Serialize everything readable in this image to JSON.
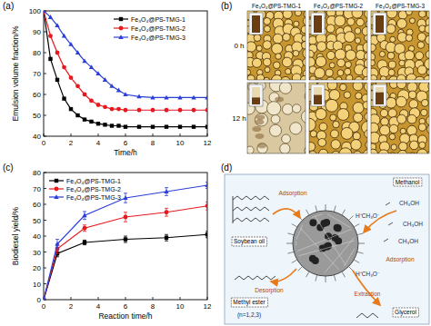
{
  "chart_data": [
    {
      "type": "line",
      "title": "(a)",
      "x_label": "Time/h",
      "y_label": "Emulsion volume fraction/%",
      "x": [
        0,
        0.5,
        1,
        1.5,
        2,
        2.5,
        3,
        3.5,
        4,
        4.5,
        5,
        5.5,
        6,
        7,
        8,
        9,
        10,
        11,
        12
      ],
      "xlim": [
        0,
        12
      ],
      "xticks": [
        0,
        2,
        4,
        6,
        8,
        10,
        12
      ],
      "ylim": [
        40,
        100
      ],
      "yticks": [
        40,
        50,
        60,
        70,
        80,
        90,
        100
      ],
      "grid": false,
      "legend": "top-right",
      "series": [
        {
          "name": "Fe₃O₄@PS-TMG-1",
          "color": "#000000",
          "marker": "square",
          "values": [
            100,
            77,
            67,
            58,
            53,
            50,
            48,
            47,
            46,
            45.5,
            45,
            45,
            44.5,
            44.5,
            44.5,
            44.5,
            44.5,
            44.5,
            44.5
          ]
        },
        {
          "name": "Fe₃O₄@PS-TMG-2",
          "color": "#e8191e",
          "marker": "circle",
          "values": [
            100,
            88,
            80,
            73,
            68,
            64,
            60,
            57,
            55,
            54,
            53,
            53,
            52.5,
            52.5,
            52.5,
            52.5,
            52.5,
            52.5,
            52.5
          ]
        },
        {
          "name": "Fe₃O₄@PS-TMG-3",
          "color": "#2b3fd8",
          "marker": "triangle",
          "values": [
            100,
            97,
            93,
            88,
            84,
            80,
            76,
            73,
            70,
            67,
            64,
            62,
            60,
            59,
            58.5,
            58.5,
            58.5,
            58.5,
            58.5
          ]
        }
      ]
    },
    {
      "type": "line",
      "title": "(c)",
      "x_label": "Reaction time/h",
      "y_label": "Biodiesel yield/%",
      "x": [
        0,
        1,
        3,
        6,
        9,
        12
      ],
      "xlim": [
        0,
        12
      ],
      "xticks": [
        0,
        2,
        4,
        6,
        8,
        10,
        12
      ],
      "ylim": [
        0,
        80
      ],
      "yticks": [
        0,
        10,
        20,
        30,
        40,
        50,
        60,
        70,
        80
      ],
      "grid": false,
      "legend": "top-left",
      "series": [
        {
          "name": "Fe₃O₄@PS-TMG-1",
          "color": "#000000",
          "marker": "square",
          "values": [
            0,
            29,
            36,
            38,
            39,
            41
          ],
          "error": [
            0,
            2,
            1.5,
            2,
            2,
            2
          ]
        },
        {
          "name": "Fe₃O₄@PS-TMG-2",
          "color": "#e8191e",
          "marker": "circle",
          "values": [
            0,
            32,
            45,
            52,
            55,
            59
          ],
          "error": [
            0,
            3,
            2,
            3,
            2.5,
            2.5
          ]
        },
        {
          "name": "Fe₃O₄@PS-TMG-3",
          "color": "#2b3fd8",
          "marker": "triangle",
          "values": [
            0,
            35,
            53,
            64,
            68,
            72
          ],
          "error": [
            0,
            3,
            2.5,
            3,
            2.5,
            2
          ]
        }
      ]
    }
  ],
  "images": {
    "title": "(b)",
    "columns": [
      "Fe₃O₄@PS-TMG-1",
      "Fe₃O₄@PS-TMG-2",
      "Fe₃O₄@PS-TMG-3"
    ],
    "rows": [
      "0 h",
      "12 h"
    ]
  },
  "diagram": {
    "title": "(d)",
    "labels": [
      "Methanol",
      "Soybean oil",
      "Methyl ester",
      "Glycerol",
      "Adsorption",
      "Adsorption",
      "Desorption",
      "Extraction",
      "CH₃OH",
      "CH₃OH",
      "CH₃OH",
      "(n=1,2,3)",
      "H⁺CH₃O⁻",
      "H⁺CH₃O⁻"
    ]
  }
}
